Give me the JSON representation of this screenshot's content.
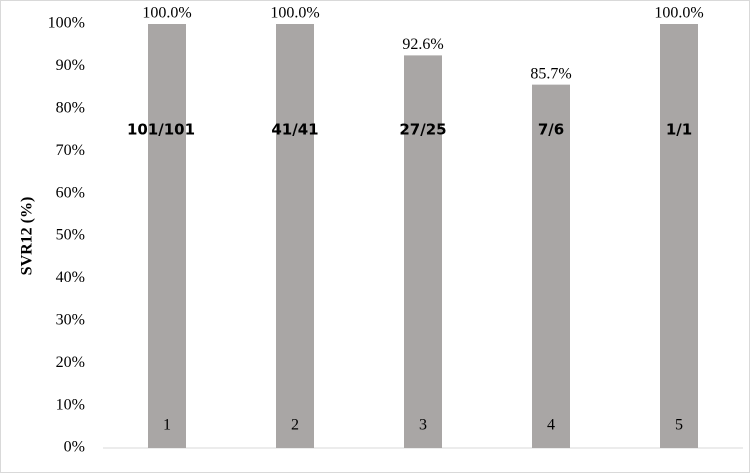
{
  "chart_data": {
    "type": "bar",
    "y_label": "SVR12  (%)",
    "categories": [
      "1",
      "2",
      "3",
      "4",
      "5"
    ],
    "values": [
      100,
      100,
      92.6,
      85.7,
      100
    ],
    "value_labels": [
      "100.0%",
      "100.0%",
      "92.6%",
      "85.7%",
      "100.0%"
    ],
    "annotations": [
      "101/101",
      "41/41",
      "27/25",
      "7/6",
      "1/1"
    ],
    "color": "#a9a6a5",
    "ylim": [
      0,
      100
    ],
    "yticks": [
      {
        "value": 0,
        "label": "0%"
      },
      {
        "value": 10,
        "label": "10%"
      },
      {
        "value": 20,
        "label": "20%"
      },
      {
        "value": 30,
        "label": "30%"
      },
      {
        "value": 40,
        "label": "40%"
      },
      {
        "value": 50,
        "label": "50%"
      },
      {
        "value": 60,
        "label": "60%"
      },
      {
        "value": 70,
        "label": "70%"
      },
      {
        "value": 80,
        "label": "80%"
      },
      {
        "value": 90,
        "label": "90%"
      },
      {
        "value": 100,
        "label": "100%"
      }
    ],
    "grid": false
  }
}
